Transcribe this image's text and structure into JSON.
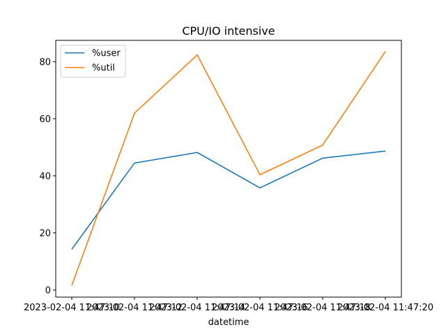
{
  "chart_data": {
    "type": "line",
    "title": "CPU/IO intensive",
    "xlabel": "datetime",
    "ylabel": "",
    "x": [
      "2023-02-04 11:47:10",
      "2023-02-04 11:47:12",
      "2023-02-04 11:47:14",
      "2023-02-04 11:47:16",
      "2023-02-04 11:47:18",
      "2023-02-04 11:47:20"
    ],
    "x_tick_labels": [
      "2023-02-04 11:47:10",
      "2023-02-04 11:47:12",
      "2023-02-04 11:47:14",
      "2023-02-04 11:47:16",
      "2023-02-04 11:47:18",
      "2023-02-04 11:47:20"
    ],
    "y_ticks": [
      0,
      20,
      40,
      60,
      80
    ],
    "ylim": [
      -2.5,
      87.5
    ],
    "grid": false,
    "legend_position": "top-left",
    "series": [
      {
        "name": "%user",
        "color": "#1f77b4",
        "values": [
          14.3,
          44.5,
          48.2,
          35.8,
          46.2,
          48.7
        ]
      },
      {
        "name": "%util",
        "color": "#ff7f0e",
        "values": [
          1.6,
          62.0,
          82.4,
          40.4,
          50.8,
          83.6
        ]
      }
    ]
  }
}
